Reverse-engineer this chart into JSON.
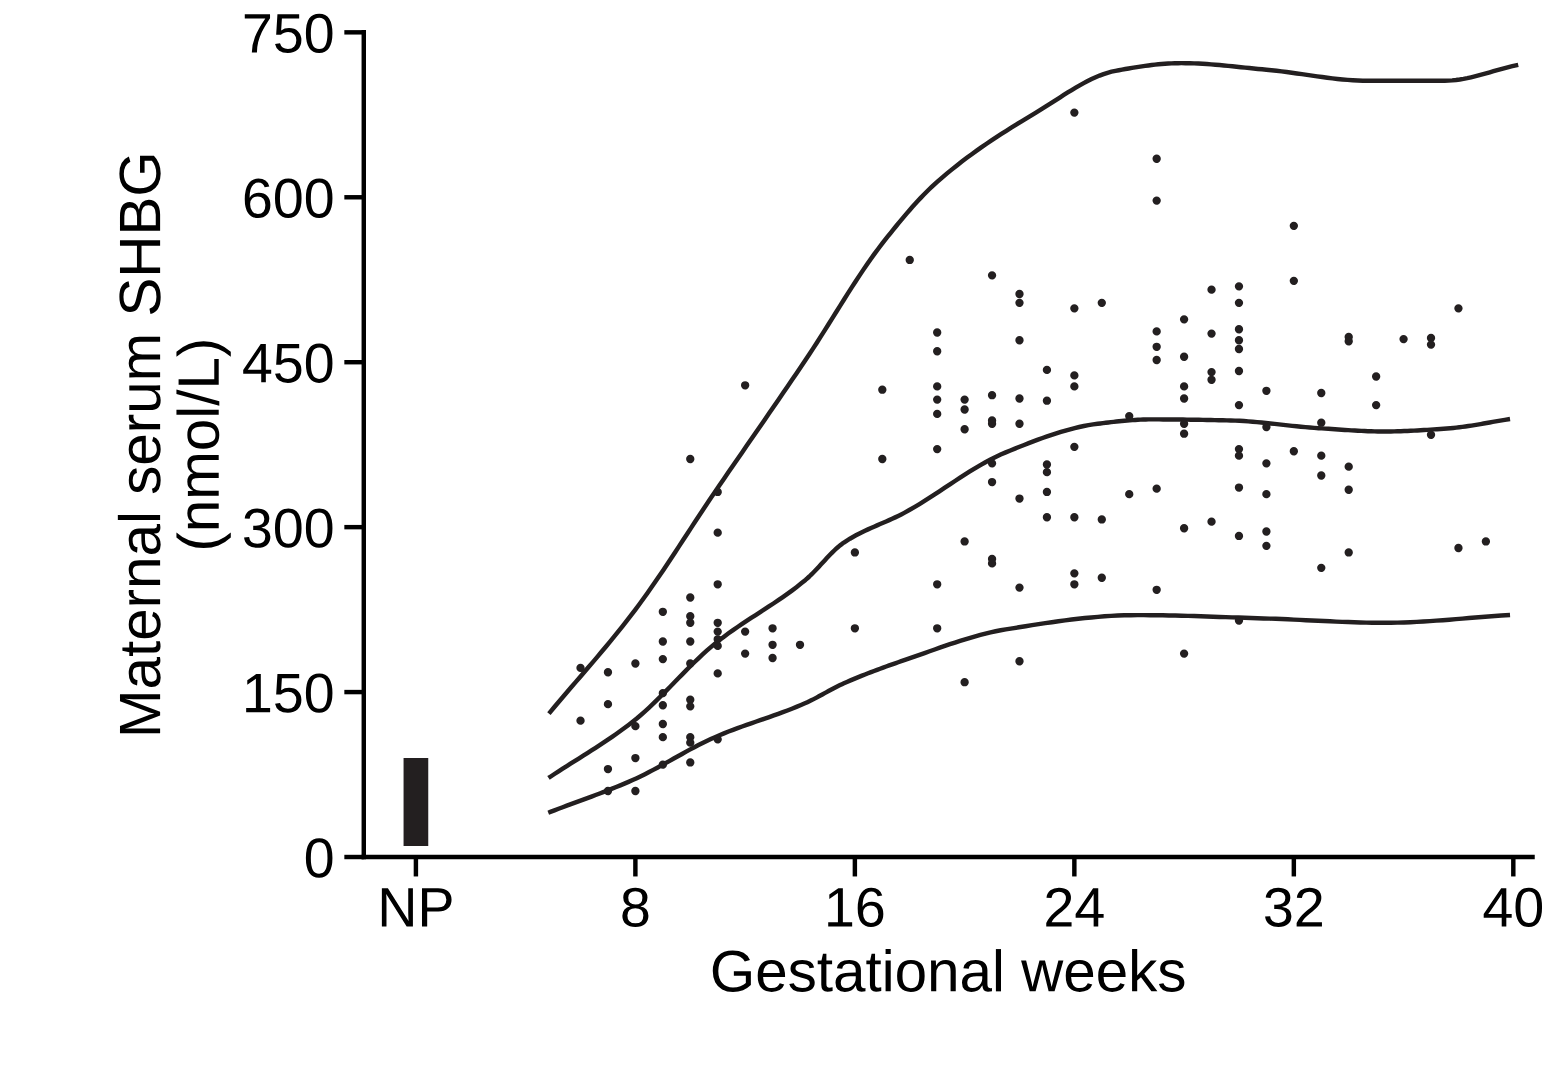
{
  "chart_data": {
    "type": "scatter",
    "xlabel": "Gestational weeks",
    "ylabel": "Maternal serum SHBG\n(nmol/L)",
    "xlim": [
      -1.9,
      40.7
    ],
    "xticks": [
      {
        "value": 0,
        "label": "NP"
      },
      8,
      16,
      24,
      32,
      40
    ],
    "ylim": [
      0,
      750
    ],
    "yticks": [
      0,
      150,
      300,
      450,
      600,
      750
    ],
    "grid": false,
    "series": [
      {
        "type": "bar",
        "color": "#231f20",
        "x": [
          0
        ],
        "base": [
          10
        ],
        "values": [
          80
        ]
      },
      {
        "color": "#231f20",
        "marker": "circle",
        "x": [
          6,
          6,
          7,
          7,
          7,
          7,
          8,
          8,
          8,
          8,
          9,
          9,
          9,
          9,
          9,
          9,
          9,
          9,
          10,
          10,
          10,
          10,
          10,
          10,
          10,
          10,
          10,
          10,
          10,
          11,
          11,
          11,
          11,
          11,
          11,
          11,
          11,
          11,
          12,
          12,
          12,
          13,
          13,
          13,
          14,
          16,
          16,
          17,
          17,
          18,
          19,
          19,
          19,
          19,
          19,
          19,
          19,
          19,
          20,
          20,
          20,
          20,
          20,
          21,
          21,
          21,
          21,
          21,
          21,
          21,
          21,
          22,
          22,
          22,
          22,
          22,
          22,
          22,
          22,
          23,
          23,
          23,
          23,
          23,
          23,
          24,
          24,
          24,
          24,
          24,
          24,
          24,
          24,
          25,
          25,
          25,
          26,
          26,
          27,
          27,
          27,
          27,
          27,
          27,
          27,
          28,
          28,
          28,
          28,
          28,
          28,
          28,
          28,
          29,
          29,
          29,
          29,
          29,
          30,
          30,
          30,
          30,
          30,
          30,
          30,
          30,
          30,
          30,
          30,
          30,
          31,
          31,
          31,
          31,
          31,
          31,
          32,
          32,
          32,
          33,
          33,
          33,
          33,
          33,
          34,
          34,
          34,
          34,
          34,
          35,
          35,
          36,
          37,
          37,
          37,
          38,
          38,
          39
        ],
        "values": [
          172,
          124,
          168,
          139,
          80,
          60,
          176,
          119,
          90,
          60,
          223,
          196,
          180,
          149,
          138,
          121,
          109,
          84,
          362,
          236,
          219,
          213,
          196,
          176,
          143,
          137,
          109,
          104,
          86,
          332,
          295,
          248,
          213,
          205,
          198,
          192,
          167,
          107,
          429,
          205,
          185,
          208,
          193,
          181,
          193,
          277,
          208,
          425,
          362,
          543,
          477,
          460,
          428,
          416,
          403,
          371,
          248,
          208,
          416,
          407,
          389,
          287,
          159,
          529,
          420,
          397,
          394,
          358,
          341,
          271,
          267,
          512,
          504,
          470,
          417,
          394,
          326,
          245,
          178,
          443,
          415,
          357,
          350,
          332,
          309,
          677,
          499,
          438,
          428,
          373,
          309,
          258,
          248,
          504,
          307,
          254,
          401,
          330,
          635,
          597,
          478,
          464,
          452,
          335,
          243,
          489,
          455,
          428,
          417,
          394,
          385,
          299,
          185,
          516,
          476,
          441,
          434,
          305,
          519,
          504,
          480,
          470,
          462,
          442,
          411,
          371,
          365,
          336,
          292,
          215,
          424,
          391,
          358,
          330,
          296,
          283,
          574,
          524,
          369,
          422,
          395,
          365,
          347,
          263,
          473,
          469,
          355,
          334,
          277,
          437,
          411,
          471,
          472,
          466,
          384,
          499,
          281,
          287
        ]
      },
      {
        "type": "line",
        "color": "#231f20",
        "marker": "none",
        "line_style": "solid",
        "x": [
          4.9,
          8,
          10.9,
          14.2,
          17,
          19,
          22.6,
          25.5,
          27.9,
          31,
          34.7,
          37.5,
          40.1
        ],
        "values": [
          132,
          225,
          332,
          452,
          558,
          614,
          677,
          715,
          722,
          716,
          706,
          706,
          720
        ]
      },
      {
        "type": "line",
        "color": "#231f20",
        "marker": "none",
        "line_style": "solid",
        "x": [
          4.9,
          7.9,
          10.9,
          14.2,
          15.6,
          17.8,
          21.5,
          24.85,
          26.8,
          29.7,
          32.9,
          35.3,
          37.7,
          39.8
        ],
        "values": [
          73,
          123,
          194,
          252,
          286,
          313,
          368,
          394,
          398,
          397,
          390,
          387,
          390,
          398
        ]
      },
      {
        "type": "line",
        "color": "#231f20",
        "marker": "none",
        "line_style": "solid",
        "x": [
          4.9,
          7.9,
          10.9,
          14.2,
          15.6,
          17.8,
          21.5,
          26.3,
          30.9,
          35.3,
          39.8
        ],
        "values": [
          41,
          70,
          109,
          140,
          158,
          179,
          207,
          220,
          217,
          213,
          220
        ]
      }
    ]
  }
}
